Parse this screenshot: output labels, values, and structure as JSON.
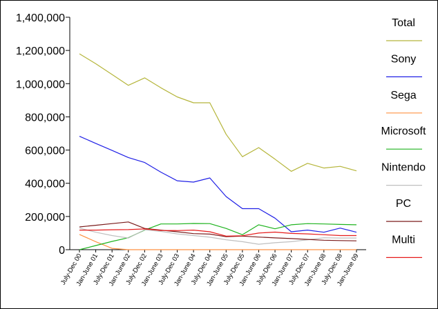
{
  "chart_data": {
    "type": "line",
    "categories": [
      "July-Dec 00",
      "Jan-June 01",
      "July-Dec 01",
      "Jan-June 02",
      "July-Dec 02",
      "Jan-June 03",
      "July-Dec 03",
      "Jan-June 04",
      "July-Dec 04",
      "Jan-June 05",
      "July-Dec 05",
      "Jan-June 06",
      "July-Dec 06",
      "Jan-June 07",
      "July-Dec 07",
      "Jan-June 08",
      "July-Dec 08",
      "Jan-June 09"
    ],
    "ylim": [
      0,
      1400000
    ],
    "y_ticks": [
      0,
      200000,
      400000,
      600000,
      800000,
      1000000,
      1200000,
      1400000
    ],
    "y_tick_labels": [
      "0",
      "200,000",
      "400,000",
      "600,000",
      "800,000",
      "1,000,000",
      "1,200,000",
      "1,400,000"
    ],
    "grid": false,
    "legend_position": "right",
    "series": [
      {
        "name": "Total",
        "color": "#b5b53a",
        "values": [
          1180000,
          1120000,
          1055000,
          990000,
          1035000,
          975000,
          920000,
          885000,
          885000,
          695000,
          560000,
          615000,
          545000,
          472000,
          520000,
          492000,
          502000,
          475000
        ]
      },
      {
        "name": "Sony",
        "color": "#1f1fe6",
        "values": [
          683000,
          640000,
          598000,
          555000,
          525000,
          467000,
          415000,
          407000,
          432000,
          320000,
          247000,
          247000,
          190000,
          108000,
          118000,
          105000,
          130000,
          105000
        ]
      },
      {
        "name": "Sega",
        "color": "#ff9040",
        "values": [
          92000,
          48000,
          8000,
          0,
          0,
          0,
          0,
          0,
          0,
          0,
          0,
          0,
          0,
          0,
          0,
          0,
          0,
          0
        ]
      },
      {
        "name": "Microsoft",
        "color": "#1db31d",
        "values": [
          0,
          25000,
          50000,
          72000,
          118000,
          155000,
          155000,
          158000,
          157000,
          128000,
          90000,
          150000,
          126000,
          150000,
          157000,
          155000,
          152000,
          150000
        ]
      },
      {
        "name": "Nintendo",
        "color": "#bfbfbf",
        "values": [
          130000,
          105000,
          85000,
          70000,
          120000,
          110000,
          95000,
          85000,
          75000,
          60000,
          48000,
          33000,
          42000,
          48000,
          60000,
          72000,
          70000,
          70000
        ]
      },
      {
        "name": "PC",
        "color": "#7a1a1a",
        "values": [
          137000,
          147000,
          157000,
          167000,
          128000,
          118000,
          108000,
          97000,
          94000,
          78000,
          82000,
          76000,
          71000,
          67000,
          62000,
          57000,
          55000,
          53000
        ]
      },
      {
        "name": "Multi",
        "color": "#e61a1a",
        "values": [
          118000,
          118000,
          120000,
          121000,
          125000,
          116000,
          115000,
          118000,
          108000,
          82000,
          84000,
          100000,
          106000,
          98000,
          95000,
          90000,
          85000,
          85000
        ]
      }
    ]
  }
}
